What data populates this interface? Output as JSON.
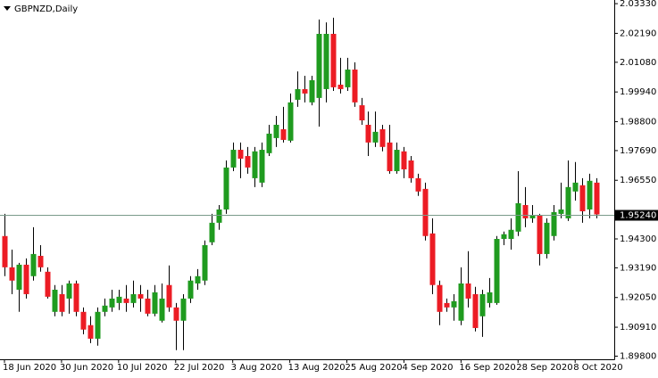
{
  "chart_data": {
    "type": "candlestick",
    "title": "GBPNZD,Daily",
    "x": [
      "18 Jun 2020",
      null,
      null,
      null,
      null,
      null,
      null,
      null,
      "30 Jun 2020",
      null,
      null,
      null,
      null,
      null,
      null,
      null,
      "10 Jul 2020",
      null,
      null,
      null,
      null,
      null,
      null,
      null,
      "22 Jul 2020",
      null,
      null,
      null,
      null,
      null,
      null,
      null,
      "3 Aug 2020",
      null,
      null,
      null,
      null,
      null,
      null,
      null,
      "13 Aug 2020",
      null,
      null,
      null,
      null,
      null,
      null,
      null,
      "25 Aug 2020",
      null,
      null,
      null,
      null,
      null,
      null,
      null,
      "4 Sep 2020",
      null,
      null,
      null,
      null,
      null,
      null,
      null,
      "16 Sep 2020",
      null,
      null,
      null,
      null,
      null,
      null,
      null,
      "28 Sep 2020",
      null,
      null,
      null,
      null,
      null,
      null,
      null,
      "8 Oct 2020",
      null,
      null,
      null
    ],
    "open": [
      1.9441,
      1.9321,
      1.9235,
      1.9331,
      1.9287,
      1.9365,
      1.9304,
      1.915,
      1.9218,
      1.9201,
      1.9259,
      1.915,
      1.9099,
      1.9047,
      1.915,
      1.9167,
      1.9184,
      1.9201,
      1.9184,
      1.9218,
      1.9201,
      1.9143,
      1.9116,
      1.9253,
      1.9167,
      1.9116,
      1.9201,
      1.9259,
      1.927,
      1.9417,
      1.9492,
      1.9543,
      1.9704,
      1.9772,
      1.9748,
      1.9663,
      1.9646,
      1.9759,
      1.9817,
      1.9851,
      1.9807,
      1.9964,
      2.0005,
      1.9954,
      1.9971,
      2.0005,
      2.0217,
      2.0022,
      2.0012,
      2.008,
      1.9943,
      1.9868,
      1.98,
      1.9851,
      1.98,
      1.969,
      1.9766,
      1.9731,
      1.9663,
      1.9622,
      1.9451,
      1.9253,
      1.9184,
      1.9167,
      1.9116,
      1.9259,
      1.9218,
      1.9133,
      1.9184,
      1.9184,
      1.943,
      1.943,
      1.9458,
      1.956,
      1.9509,
      1.9519,
      1.9372,
      1.9441,
      1.9526,
      1.9509,
      1.9612,
      1.9636,
      1.9543,
      1.9646
    ],
    "high": [
      1.9526,
      1.9389,
      1.9338,
      1.9355,
      1.9475,
      1.9406,
      1.9321,
      1.9253,
      1.9253,
      1.927,
      1.927,
      1.9167,
      1.9133,
      1.9167,
      1.9201,
      1.9235,
      1.9235,
      1.9253,
      1.927,
      1.9253,
      1.9235,
      1.9253,
      1.9259,
      1.9328,
      1.9184,
      1.9218,
      1.9287,
      1.9314,
      1.9424,
      1.9526,
      1.956,
      1.9731,
      1.98,
      1.98,
      1.9783,
      1.9783,
      1.98,
      1.9868,
      1.9902,
      1.9937,
      1.9988,
      2.0073,
      2.0056,
      2.0056,
      2.0272,
      2.0261,
      2.0279,
      2.0125,
      2.0125,
      2.0108,
      1.9971,
      1.9919,
      1.9919,
      1.9868,
      1.9868,
      1.98,
      1.9783,
      1.9748,
      1.968,
      1.9646,
      1.9509,
      1.927,
      1.9201,
      1.9218,
      1.9321,
      1.9383,
      1.9246,
      1.9235,
      1.928,
      1.9441,
      1.9458,
      1.9509,
      1.969,
      1.9629,
      1.956,
      1.9526,
      1.9509,
      1.956,
      1.9646,
      1.9731,
      1.9725,
      1.9663,
      1.968,
      1.9663
    ],
    "low": [
      1.9287,
      1.9218,
      1.915,
      1.9201,
      1.927,
      1.9304,
      1.9201,
      1.9133,
      1.9133,
      1.9143,
      1.9133,
      1.9064,
      1.903,
      1.902,
      1.9133,
      1.915,
      1.9157,
      1.915,
      1.9167,
      1.915,
      1.9133,
      1.9133,
      1.9109,
      1.915,
      1.9003,
      1.9003,
      1.9184,
      1.9235,
      1.9253,
      1.9406,
      1.9465,
      1.9526,
      1.969,
      1.9663,
      1.968,
      1.9629,
      1.9629,
      1.9748,
      1.9783,
      1.98,
      1.98,
      1.9937,
      1.9954,
      1.9943,
      1.9861,
      1.9954,
      1.9998,
      1.9988,
      1.9998,
      1.9937,
      1.9868,
      1.9748,
      1.9783,
      1.9766,
      1.968,
      1.968,
      1.9663,
      1.9646,
      1.9595,
      1.9424,
      1.9218,
      1.9099,
      1.915,
      1.9116,
      1.9099,
      1.9167,
      1.9075,
      1.9054,
      1.9167,
      1.9177,
      1.9406,
      1.9389,
      1.9441,
      1.9475,
      1.9492,
      1.9328,
      1.9355,
      1.9424,
      1.9509,
      1.9499,
      1.9577,
      1.9492,
      1.9509,
      1.9509
    ],
    "close": [
      1.9321,
      1.927,
      1.9331,
      1.9218,
      1.9372,
      1.9321,
      1.9208,
      1.9235,
      1.915,
      1.9259,
      1.915,
      1.9082,
      1.9047,
      1.915,
      1.9174,
      1.9201,
      1.9208,
      1.9184,
      1.9218,
      1.9201,
      1.9143,
      1.9225,
      1.9201,
      1.9167,
      1.9116,
      1.9201,
      1.927,
      1.9287,
      1.9406,
      1.9492,
      1.9543,
      1.9704,
      1.9772,
      1.9738,
      1.9704,
      1.9766,
      1.9772,
      1.9834,
      1.9868,
      1.981,
      1.9954,
      2.0005,
      1.9988,
      2.0039,
      2.0217,
      2.0217,
      2.0012,
      2.0005,
      2.008,
      1.9954,
      1.9885,
      1.98,
      1.9841,
      1.9783,
      1.969,
      1.9772,
      1.9697,
      1.9663,
      1.9612,
      1.9441,
      1.9253,
      1.915,
      1.9167,
      1.9191,
      1.9259,
      1.9201,
      1.9088,
      1.9218,
      1.9225,
      1.943,
      1.9448,
      1.9465,
      1.9567,
      1.9509,
      1.9519,
      1.9372,
      1.9492,
      1.9533,
      1.9543,
      1.9629,
      1.9646,
      1.9536,
      1.9653,
      1.9524
    ],
    "up_color": "#1f9b1f",
    "down_color": "#ec1c24",
    "ylim": [
      1.8968,
      2.0347
    ],
    "yticks": [
      {
        "value": 2.0333,
        "label": "2.03330"
      },
      {
        "value": 2.0219,
        "label": "2.02190"
      },
      {
        "value": 2.0108,
        "label": "2.01080"
      },
      {
        "value": 1.9994,
        "label": "1.99940"
      },
      {
        "value": 1.988,
        "label": "1.98800"
      },
      {
        "value": 1.9769,
        "label": "1.97690"
      },
      {
        "value": 1.9655,
        "label": "1.96550"
      },
      {
        "value": 1.943,
        "label": "1.94300"
      },
      {
        "value": 1.9319,
        "label": "1.93190"
      },
      {
        "value": 1.9205,
        "label": "1.92050"
      },
      {
        "value": 1.9091,
        "label": "1.90910"
      },
      {
        "value": 1.898,
        "label": "1.89800"
      }
    ],
    "current_price": {
      "value": 1.9524,
      "label": "1.95240"
    },
    "grid": false
  }
}
